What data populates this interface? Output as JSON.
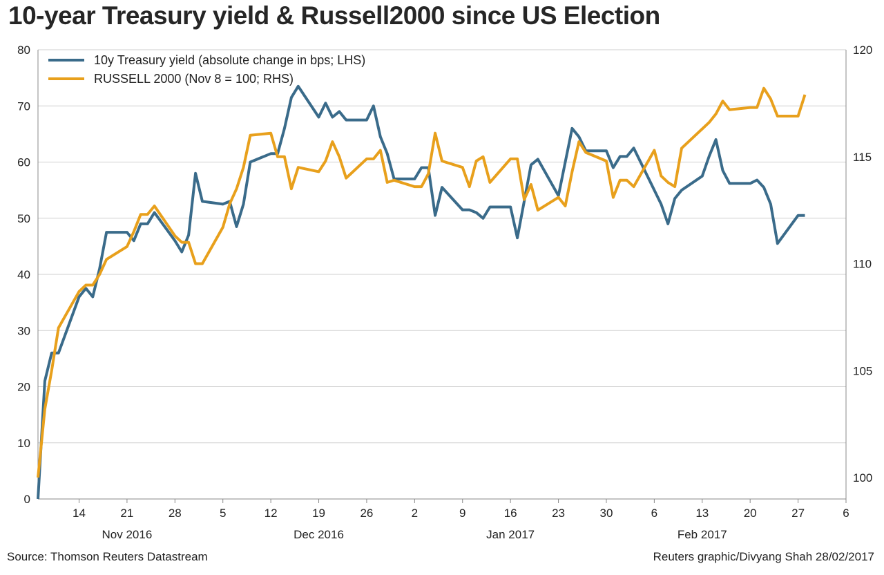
{
  "title": "10-year Treasury yield & Russell2000 since US Election",
  "source": "Source: Thomson Reuters Datastream",
  "credit": "Reuters graphic/Divyang Shah 28/02/2017",
  "colors": {
    "treasury": "#3a6b8a",
    "russell": "#e8a01c",
    "grid": "#cfcfcf",
    "axis": "#888888"
  },
  "chart_data": {
    "type": "line",
    "title": "10-year Treasury yield & Russell2000 since US Election",
    "x_range": [
      "2016-11-08",
      "2017-03-06"
    ],
    "x_tick_labels": [
      "14",
      "21",
      "28",
      "5",
      "12",
      "19",
      "26",
      "2",
      "9",
      "16",
      "23",
      "30",
      "6",
      "13",
      "20",
      "27",
      "6"
    ],
    "x_tick_dates": [
      "2016-11-14",
      "2016-11-21",
      "2016-11-28",
      "2016-12-05",
      "2016-12-12",
      "2016-12-19",
      "2016-12-26",
      "2017-01-02",
      "2017-01-09",
      "2017-01-16",
      "2017-01-23",
      "2017-01-30",
      "2017-02-06",
      "2017-02-13",
      "2017-02-20",
      "2017-02-27",
      "2017-03-06"
    ],
    "month_labels": [
      {
        "label": "Nov 2016",
        "center": "2016-11-21"
      },
      {
        "label": "Dec 2016",
        "center": "2016-12-19"
      },
      {
        "label": "Jan 2017",
        "center": "2017-01-16"
      },
      {
        "label": "Feb 2017",
        "center": "2017-02-13"
      }
    ],
    "y_left": {
      "min": 0,
      "max": 80,
      "ticks": [
        0,
        10,
        20,
        30,
        40,
        50,
        60,
        70,
        80
      ]
    },
    "y_right": {
      "min": 99,
      "max": 120,
      "ticks": [
        100,
        105,
        110,
        115,
        120
      ]
    },
    "grid": true,
    "legend_position": "top-left",
    "series": [
      {
        "name": "10y Treasury yield (absolute change in bps; LHS)",
        "axis": "left",
        "color": "#3a6b8a",
        "dates": [
          "2016-11-08",
          "2016-11-09",
          "2016-11-10",
          "2016-11-11",
          "2016-11-14",
          "2016-11-15",
          "2016-11-16",
          "2016-11-17",
          "2016-11-18",
          "2016-11-21",
          "2016-11-22",
          "2016-11-23",
          "2016-11-24",
          "2016-11-25",
          "2016-11-28",
          "2016-11-29",
          "2016-11-30",
          "2016-12-01",
          "2016-12-02",
          "2016-12-05",
          "2016-12-06",
          "2016-12-07",
          "2016-12-08",
          "2016-12-09",
          "2016-12-12",
          "2016-12-13",
          "2016-12-14",
          "2016-12-15",
          "2016-12-16",
          "2016-12-19",
          "2016-12-20",
          "2016-12-21",
          "2016-12-22",
          "2016-12-23",
          "2016-12-26",
          "2016-12-27",
          "2016-12-28",
          "2016-12-29",
          "2016-12-30",
          "2017-01-02",
          "2017-01-03",
          "2017-01-04",
          "2017-01-05",
          "2017-01-06",
          "2017-01-09",
          "2017-01-10",
          "2017-01-11",
          "2017-01-12",
          "2017-01-13",
          "2017-01-16",
          "2017-01-17",
          "2017-01-18",
          "2017-01-19",
          "2017-01-20",
          "2017-01-23",
          "2017-01-24",
          "2017-01-25",
          "2017-01-26",
          "2017-01-27",
          "2017-01-30",
          "2017-01-31",
          "2017-02-01",
          "2017-02-02",
          "2017-02-03",
          "2017-02-06",
          "2017-02-07",
          "2017-02-08",
          "2017-02-09",
          "2017-02-10",
          "2017-02-13",
          "2017-02-14",
          "2017-02-15",
          "2017-02-16",
          "2017-02-17",
          "2017-02-20",
          "2017-02-21",
          "2017-02-22",
          "2017-02-23",
          "2017-02-24",
          "2017-02-27",
          "2017-02-28"
        ],
        "values": [
          0,
          21,
          26,
          26,
          36,
          37.5,
          36,
          41,
          47.5,
          47.5,
          46,
          49,
          49,
          51,
          46,
          44,
          47,
          58,
          53,
          52.5,
          53,
          48.5,
          52.5,
          60,
          61.5,
          61.5,
          66,
          71.5,
          73.5,
          68,
          70.5,
          68,
          69,
          67.5,
          67.5,
          70,
          64.5,
          61.5,
          57,
          57,
          59,
          59,
          50.5,
          55.5,
          51.5,
          51.5,
          51,
          50,
          52,
          52,
          46.5,
          53,
          59.5,
          60.5,
          54,
          60,
          66,
          64.5,
          62,
          62,
          59,
          61,
          61,
          62.5,
          55,
          52.5,
          49,
          53.5,
          55,
          57.5,
          61,
          64,
          58.5,
          56.2,
          56.2,
          56.8,
          55.5,
          52.5,
          45.5,
          50.5,
          50.5
        ]
      },
      {
        "name": "RUSSELL 2000 (Nov 8 = 100; RHS)",
        "axis": "right",
        "color": "#e8a01c",
        "dates": [
          "2016-11-08",
          "2016-11-09",
          "2016-11-10",
          "2016-11-11",
          "2016-11-14",
          "2016-11-15",
          "2016-11-16",
          "2016-11-17",
          "2016-11-18",
          "2016-11-21",
          "2016-11-22",
          "2016-11-23",
          "2016-11-24",
          "2016-11-25",
          "2016-11-28",
          "2016-11-29",
          "2016-11-30",
          "2016-12-01",
          "2016-12-02",
          "2016-12-05",
          "2016-12-06",
          "2016-12-07",
          "2016-12-08",
          "2016-12-09",
          "2016-12-12",
          "2016-12-13",
          "2016-12-14",
          "2016-12-15",
          "2016-12-16",
          "2016-12-19",
          "2016-12-20",
          "2016-12-21",
          "2016-12-22",
          "2016-12-23",
          "2016-12-26",
          "2016-12-27",
          "2016-12-28",
          "2016-12-29",
          "2016-12-30",
          "2017-01-02",
          "2017-01-03",
          "2017-01-04",
          "2017-01-05",
          "2017-01-06",
          "2017-01-09",
          "2017-01-10",
          "2017-01-11",
          "2017-01-12",
          "2017-01-13",
          "2017-01-16",
          "2017-01-17",
          "2017-01-18",
          "2017-01-19",
          "2017-01-20",
          "2017-01-23",
          "2017-01-24",
          "2017-01-25",
          "2017-01-26",
          "2017-01-27",
          "2017-01-30",
          "2017-01-31",
          "2017-02-01",
          "2017-02-02",
          "2017-02-03",
          "2017-02-06",
          "2017-02-07",
          "2017-02-08",
          "2017-02-09",
          "2017-02-10",
          "2017-02-13",
          "2017-02-14",
          "2017-02-15",
          "2017-02-16",
          "2017-02-17",
          "2017-02-20",
          "2017-02-21",
          "2017-02-22",
          "2017-02-23",
          "2017-02-24",
          "2017-02-27",
          "2017-02-28"
        ],
        "values": [
          100,
          103.2,
          105,
          107,
          108.7,
          109,
          109,
          109.5,
          110.2,
          110.8,
          111.5,
          112.3,
          112.3,
          112.7,
          111.3,
          111,
          111,
          110,
          110,
          111.7,
          112.8,
          113.5,
          114.5,
          116,
          116.1,
          115,
          115,
          113.5,
          114.5,
          114.3,
          114.8,
          115.7,
          115,
          114,
          114.9,
          114.9,
          115.3,
          113.8,
          113.9,
          113.6,
          113.6,
          114.2,
          116.1,
          114.8,
          114.5,
          113.6,
          114.8,
          115,
          113.8,
          114.9,
          114.9,
          113,
          113.7,
          112.5,
          113.1,
          112.7,
          114.3,
          115.7,
          115.2,
          114.8,
          113.1,
          113.9,
          113.9,
          113.6,
          115.3,
          114.1,
          113.8,
          113.6,
          115.4,
          116.3,
          116.6,
          117,
          117.6,
          117.2,
          117.3,
          117.3,
          118.2,
          117.7,
          116.9,
          116.9,
          117.9
        ]
      }
    ]
  }
}
